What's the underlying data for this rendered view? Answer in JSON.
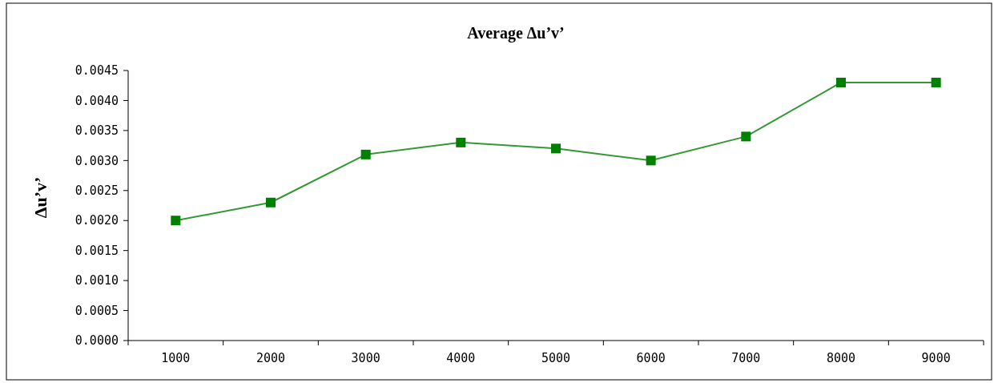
{
  "chart_data": {
    "type": "line",
    "title": "Average Δu’v’",
    "ylabel": "Δu’v’",
    "categories": [
      "1000",
      "2000",
      "3000",
      "4000",
      "5000",
      "6000",
      "7000",
      "8000",
      "9000"
    ],
    "series": [
      {
        "color": "#008000",
        "values": [
          0.002,
          0.0023,
          0.0031,
          0.0033,
          0.0032,
          0.003,
          0.0034,
          0.0043,
          0.0043
        ]
      }
    ],
    "ylim": [
      0,
      0.0045
    ],
    "yticks": [
      {
        "value": 0,
        "label": "0.0000"
      },
      {
        "value": 0.0005,
        "label": "0.0005"
      },
      {
        "value": 0.001,
        "label": "0.0010"
      },
      {
        "value": 0.0015,
        "label": "0.0015"
      },
      {
        "value": 0.002,
        "label": "0.0020"
      },
      {
        "value": 0.0025,
        "label": "0.0025"
      },
      {
        "value": 0.003,
        "label": "0.0030"
      },
      {
        "value": 0.0035,
        "label": "0.0035"
      },
      {
        "value": 0.004,
        "label": "0.0040"
      },
      {
        "value": 0.0045,
        "label": "0.0045"
      }
    ],
    "marker": "square",
    "line_style": "solid"
  }
}
